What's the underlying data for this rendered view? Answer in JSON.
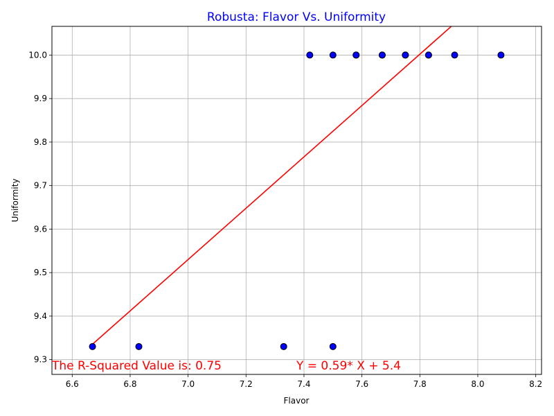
{
  "chart_data": {
    "type": "scatter",
    "title": "Robusta: Flavor Vs. Uniformity",
    "title_color": "#0000ff",
    "xlabel": "Flavor",
    "ylabel": "Uniformity",
    "xlim": [
      6.53,
      8.22
    ],
    "ylim": [
      9.266,
      10.066
    ],
    "xticks": [
      "6.6",
      "6.8",
      "7.0",
      "7.2",
      "7.4",
      "7.6",
      "7.8",
      "8.0",
      "8.2"
    ],
    "yticks": [
      "9.3",
      "9.4",
      "9.5",
      "9.6",
      "9.7",
      "9.8",
      "9.9",
      "10.0"
    ],
    "grid": true,
    "point_color": "#0000ff",
    "point_edge_color": "#000000",
    "points": [
      {
        "x": 6.67,
        "y": 9.33
      },
      {
        "x": 6.83,
        "y": 9.33
      },
      {
        "x": 7.33,
        "y": 9.33
      },
      {
        "x": 7.5,
        "y": 9.33
      },
      {
        "x": 7.42,
        "y": 10.0
      },
      {
        "x": 7.5,
        "y": 10.0
      },
      {
        "x": 7.58,
        "y": 10.0
      },
      {
        "x": 7.58,
        "y": 10.0
      },
      {
        "x": 7.67,
        "y": 10.0
      },
      {
        "x": 7.67,
        "y": 10.0
      },
      {
        "x": 7.75,
        "y": 10.0
      },
      {
        "x": 7.75,
        "y": 10.0
      },
      {
        "x": 7.83,
        "y": 10.0
      },
      {
        "x": 7.83,
        "y": 10.0
      },
      {
        "x": 7.92,
        "y": 10.0
      },
      {
        "x": 8.08,
        "y": 10.0
      }
    ],
    "regression": {
      "slope": 0.59,
      "intercept": 5.4,
      "x_range": [
        6.67,
        8.08
      ],
      "color": "#ff0000"
    },
    "annotations": {
      "r_squared": "The R-Squared Value is: 0.75",
      "equation": "Y = 0.59* X + 5.4",
      "color": "#ff0000"
    }
  }
}
